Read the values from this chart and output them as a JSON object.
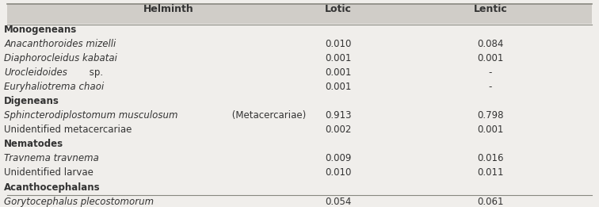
{
  "header": [
    "Helminth",
    "Lotic",
    "Lentic"
  ],
  "sections": [
    {
      "group": "Monogeneans",
      "rows": [
        {
          "helminth": "Anacanthoroides mizelli",
          "italic": true,
          "lotic": "0.010",
          "lentic": "0.084"
        },
        {
          "helminth": "Diaphorocleidus kabatai",
          "italic": true,
          "lotic": "0.001",
          "lentic": "0.001"
        },
        {
          "helminth": "Urocleidoides sp.",
          "italic_partial": true,
          "lotic": "0.001",
          "lentic": "-"
        },
        {
          "helminth": "Euryhaliotrema chaoi",
          "italic": true,
          "lotic": "0.001",
          "lentic": "-"
        }
      ]
    },
    {
      "group": "Digeneans",
      "rows": [
        {
          "helminth": "Sphincterodiplostomum musculosum (Metacercariae)",
          "italic_partial": true,
          "lotic": "0.913",
          "lentic": "0.798"
        },
        {
          "helminth": "Unidentified metacercariae",
          "italic": false,
          "lotic": "0.002",
          "lentic": "0.001"
        }
      ]
    },
    {
      "group": "Nematodes",
      "rows": [
        {
          "helminth": "Travnema travnema",
          "italic": true,
          "lotic": "0.009",
          "lentic": "0.016"
        },
        {
          "helminth": "Unidentified larvae",
          "italic": false,
          "lotic": "0.010",
          "lentic": "0.011"
        }
      ]
    },
    {
      "group": "Acanthocephalans",
      "rows": [
        {
          "helminth": "Gorytocephalus plecostomorum",
          "italic": true,
          "lotic": "0.054",
          "lentic": "0.061"
        }
      ]
    }
  ],
  "bg_color": "#f0eeeb",
  "header_bg": "#d0cdc8",
  "text_color": "#333333",
  "group_font_weight": "bold",
  "font_size": 8.5,
  "header_font_size": 9
}
